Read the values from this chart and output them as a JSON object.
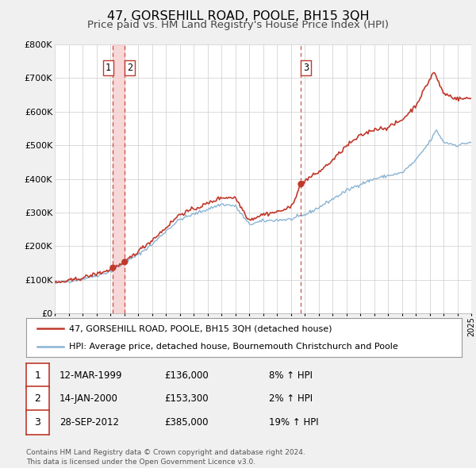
{
  "title": "47, GORSEHILL ROAD, POOLE, BH15 3QH",
  "subtitle": "Price paid vs. HM Land Registry's House Price Index (HPI)",
  "ylim": [
    0,
    800000
  ],
  "yticks": [
    0,
    100000,
    200000,
    300000,
    400000,
    500000,
    600000,
    700000,
    800000
  ],
  "ytick_labels": [
    "£0",
    "£100K",
    "£200K",
    "£300K",
    "£400K",
    "£500K",
    "£600K",
    "£700K",
    "£800K"
  ],
  "x_start_year": 1995,
  "x_end_year": 2025,
  "sale_color": "#c0392b",
  "hpi_color": "#8ab4d4",
  "vline_color": "#c0392b",
  "shade_color": "#f5c6c6",
  "sale_marker_color": "#c0392b",
  "legend_border_color": "#aaaaaa",
  "table_border_color": "#c0392b",
  "bg_color": "#f0f0f0",
  "plot_bg_color": "#ffffff",
  "grid_color": "#cccccc",
  "title_fontsize": 11.5,
  "subtitle_fontsize": 9.5,
  "legend_label_1": "47, GORSEHILL ROAD, POOLE, BH15 3QH (detached house)",
  "legend_label_2": "HPI: Average price, detached house, Bournemouth Christchurch and Poole",
  "sales": [
    {
      "num": 1,
      "date_decimal": 1999.19,
      "price": 136000,
      "label": "1",
      "vline_x": 1999.19
    },
    {
      "num": 2,
      "date_decimal": 2000.04,
      "price": 153300,
      "label": "2",
      "vline_x": 2000.04
    },
    {
      "num": 3,
      "date_decimal": 2012.74,
      "price": 385000,
      "label": "3",
      "vline_x": 2012.74
    }
  ],
  "table_rows": [
    {
      "num": "1",
      "date": "12-MAR-1999",
      "price": "£136,000",
      "hpi_change": "8% ↑ HPI"
    },
    {
      "num": "2",
      "date": "14-JAN-2000",
      "price": "£153,300",
      "hpi_change": "2% ↑ HPI"
    },
    {
      "num": "3",
      "date": "28-SEP-2012",
      "price": "£385,000",
      "hpi_change": "19% ↑ HPI"
    }
  ],
  "footnote": "Contains HM Land Registry data © Crown copyright and database right 2024.\nThis data is licensed under the Open Government Licence v3.0."
}
